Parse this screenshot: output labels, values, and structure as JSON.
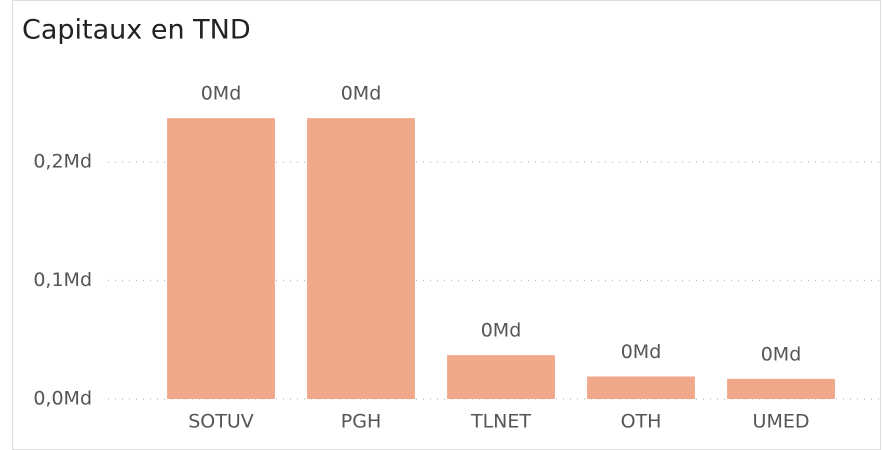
{
  "chart_data": {
    "type": "bar",
    "title": "Capitaux en TND",
    "categories": [
      "SOTUV",
      "PGH",
      "TLNET",
      "OTH",
      "UMED"
    ],
    "values": [
      0.237,
      0.237,
      0.037,
      0.019,
      0.017
    ],
    "value_labels": [
      "0Md",
      "0Md",
      "0Md",
      "0Md",
      "0Md"
    ],
    "color": "#f0a88a",
    "ylim": [
      0,
      0.28
    ],
    "yticks": [
      {
        "value": 0,
        "label": "0,0Md"
      },
      {
        "value": 0.1,
        "label": "0,1Md"
      },
      {
        "value": 0.2,
        "label": "0,2Md"
      }
    ],
    "grid": true
  }
}
